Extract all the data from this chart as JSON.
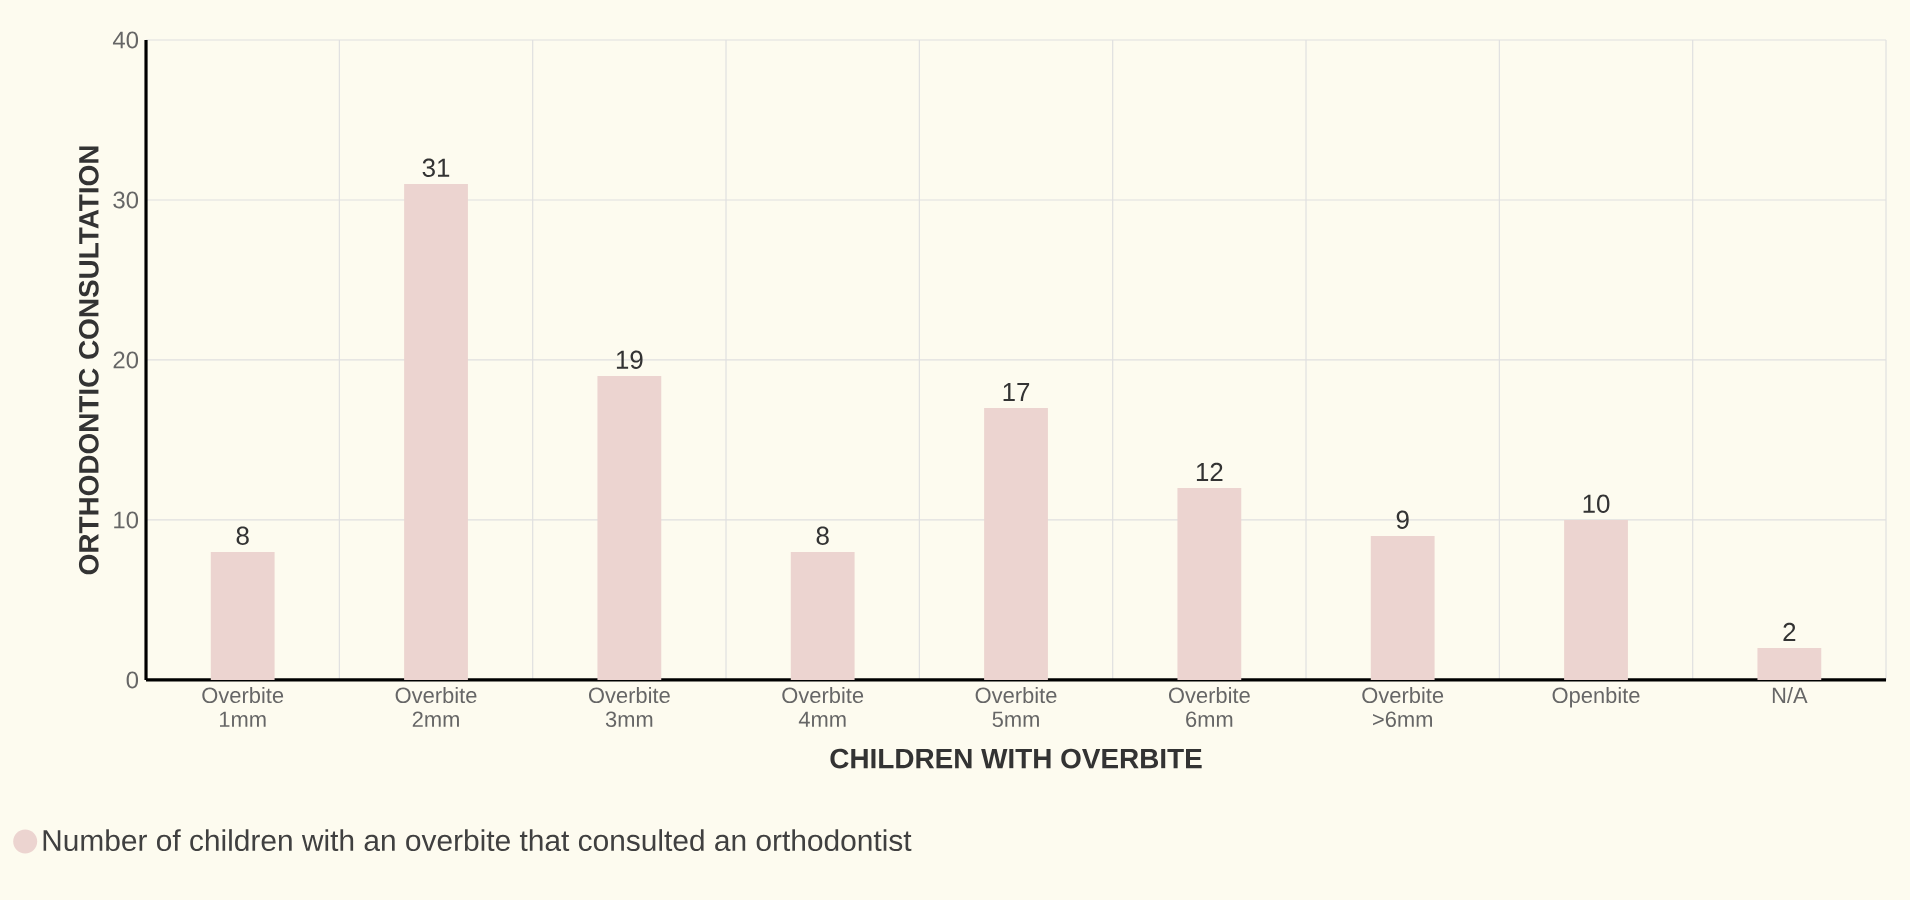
{
  "chart_data": {
    "type": "bar",
    "xlabel": "CHILDREN WITH OVERBITE",
    "ylabel": "ORTHODONTIC CONSULTATION",
    "categories": [
      "Overbite 1mm",
      "Overbite 2mm",
      "Overbite 3mm",
      "Overbite 4mm",
      "Overbite 5mm",
      "Overbite 6mm",
      "Overbite >6mm",
      "Openbite",
      "N/A"
    ],
    "series": [
      {
        "name": "Number of children with an overbite that consulted an orthodontist",
        "color": "#ecd4d0",
        "values": [
          8,
          31,
          19,
          8,
          17,
          12,
          9,
          10,
          2
        ]
      }
    ],
    "ylim": [
      0,
      40
    ],
    "yticks": [
      0,
      10,
      20,
      30,
      40
    ],
    "grid": true,
    "legend": "bottom",
    "data_labels": true
  }
}
